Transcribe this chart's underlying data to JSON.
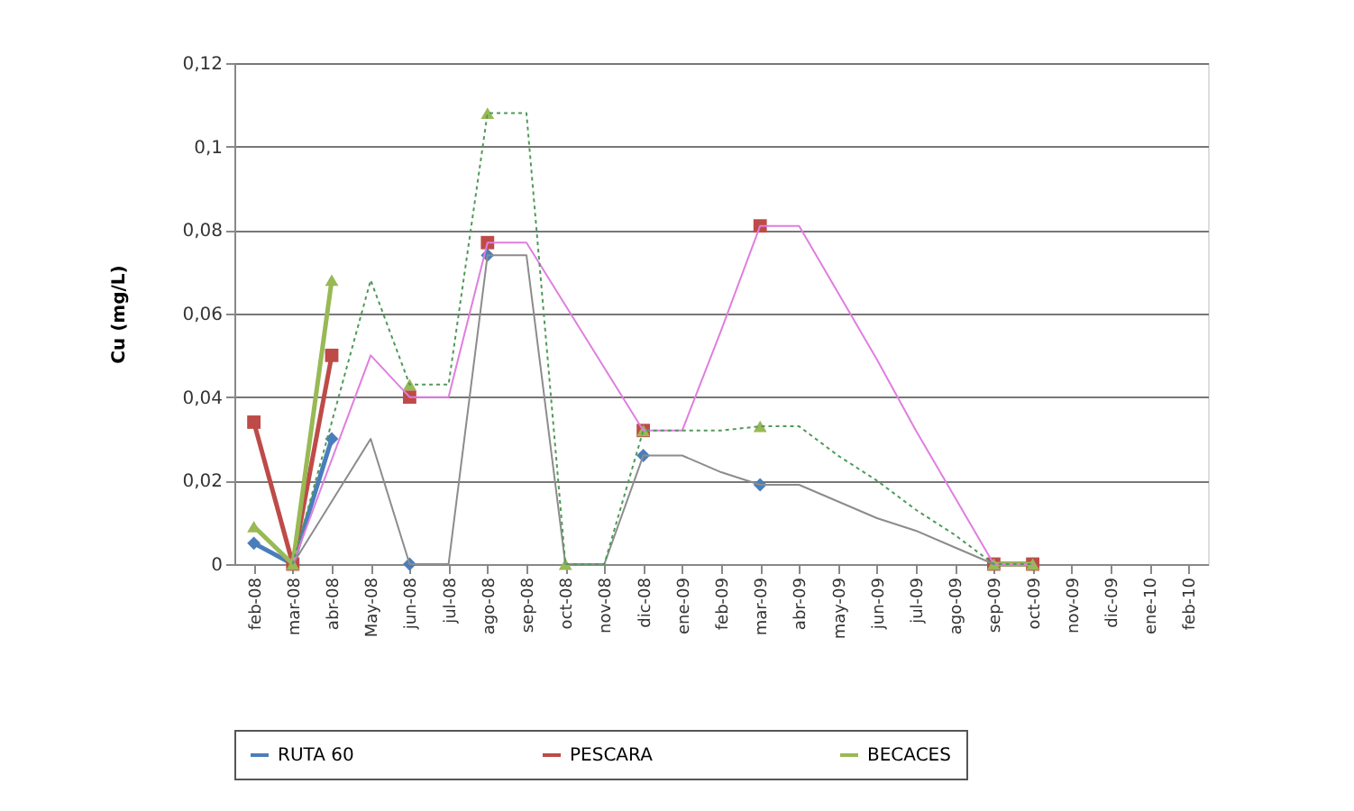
{
  "chart_data": {
    "type": "line",
    "ylabel": "Cu (mg/L)",
    "categories": [
      "feb-08",
      "mar-08",
      "abr-08",
      "May-08",
      "jun-08",
      "jul-08",
      "ago-08",
      "sep-08",
      "oct-08",
      "nov-08",
      "dic-08",
      "ene-09",
      "feb-09",
      "mar-09",
      "abr-09",
      "may-09",
      "jun-09",
      "jul-09",
      "ago-09",
      "sep-09",
      "oct-09",
      "nov-09",
      "dic-09",
      "ene-10",
      "feb-10"
    ],
    "series": [
      {
        "name": "RUTA 60",
        "color": "#4a7ebb",
        "marker": "diamond",
        "line_style": "solid",
        "values": [
          0.005,
          0,
          0.03,
          null,
          0,
          null,
          0.074,
          null,
          null,
          null,
          0.026,
          null,
          null,
          0.019,
          null,
          null,
          null,
          null,
          null,
          0,
          0,
          null,
          null,
          null,
          null
        ]
      },
      {
        "name": "PESCARA",
        "color": "#be4b48",
        "marker": "square",
        "line_style": "solid",
        "values": [
          0.034,
          0,
          0.05,
          null,
          0.04,
          null,
          0.077,
          null,
          null,
          null,
          0.032,
          null,
          null,
          0.081,
          null,
          null,
          null,
          null,
          null,
          0,
          0,
          null,
          null,
          null,
          null
        ]
      },
      {
        "name": "BECACES",
        "color": "#98b954",
        "marker": "triangle",
        "line_style": "solid",
        "values": [
          0.009,
          0,
          0.068,
          null,
          0.043,
          null,
          0.108,
          null,
          0,
          null,
          0.032,
          null,
          null,
          0.033,
          null,
          null,
          null,
          null,
          null,
          0,
          0,
          null,
          null,
          null,
          null
        ]
      },
      {
        "color": "#8c8c8c",
        "marker": "none",
        "line_style": "solid",
        "values": [
          null,
          0,
          0.015,
          0.03,
          0,
          0,
          0.074,
          0.074,
          0,
          0,
          0.026,
          0.026,
          0.022,
          0.019,
          0.019,
          0.015,
          0.011,
          0.008,
          0.004,
          0,
          0,
          null,
          null,
          null,
          null
        ]
      },
      {
        "color": "#e07ee0",
        "marker": "none",
        "line_style": "solid",
        "values": [
          null,
          0,
          0.025,
          0.05,
          0.04,
          0.04,
          0.077,
          0.077,
          0.062,
          0.047,
          0.032,
          0.032,
          0.056,
          0.081,
          0.081,
          0.065,
          0.049,
          0.032,
          0.016,
          0,
          0,
          null,
          null,
          null,
          null
        ]
      },
      {
        "color": "#4f9a5a",
        "marker": "none",
        "line_style": "dotted",
        "values": [
          null,
          0,
          0.034,
          0.068,
          0.043,
          0.043,
          0.108,
          0.108,
          0,
          0,
          0.032,
          0.032,
          0.032,
          0.033,
          0.033,
          0.026,
          0.02,
          0.013,
          0.007,
          0,
          0,
          null,
          null,
          null,
          null
        ]
      }
    ],
    "ylim": [
      0,
      0.12
    ],
    "yticks": [
      0,
      {
        "value": 0.02,
        "label": "0,02"
      },
      {
        "value": 0.04,
        "label": "0,04"
      },
      {
        "value": 0.06,
        "label": "0,06"
      },
      {
        "value": 0.08,
        "label": "0,08"
      },
      {
        "value": 0.1,
        "label": "0,1"
      },
      {
        "value": 0.12,
        "label": "0,12"
      }
    ],
    "grid": "y",
    "legend": "bottom"
  }
}
